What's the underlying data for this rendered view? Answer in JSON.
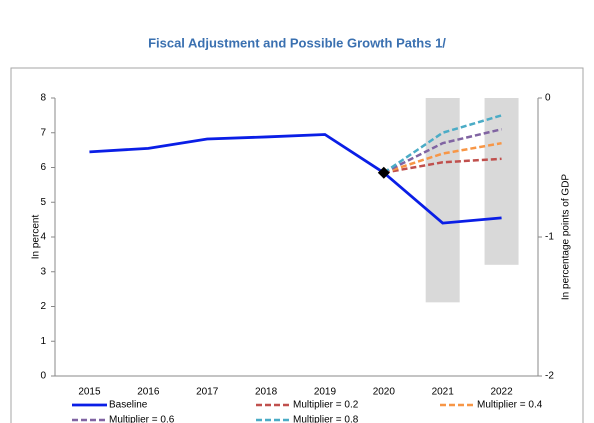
{
  "chart_data": {
    "type": "line",
    "title": "Fiscal Adjustment and Possible Growth Paths 1/",
    "ylabel": "In percent",
    "y2label": "In percentage points of GDP",
    "categories": [
      "2015",
      "2016",
      "2017",
      "2018",
      "2019",
      "2020",
      "2021",
      "2022"
    ],
    "series": [
      {
        "name": "Baseline",
        "color": "#0a1ee6",
        "dash": false,
        "values": [
          6.45,
          6.55,
          6.82,
          6.88,
          6.95,
          5.85,
          4.4,
          4.55
        ]
      },
      {
        "name": "Multiplier = 0.2",
        "color": "#c0504d",
        "dash": true,
        "values": [
          null,
          null,
          null,
          null,
          null,
          5.85,
          6.15,
          6.25
        ]
      },
      {
        "name": "Multiplier = 0.4",
        "color": "#f79646",
        "dash": true,
        "values": [
          null,
          null,
          null,
          null,
          null,
          5.85,
          6.4,
          6.7
        ]
      },
      {
        "name": "Multiplier = 0.6",
        "color": "#8064a2",
        "dash": true,
        "values": [
          null,
          null,
          null,
          null,
          null,
          5.85,
          6.7,
          7.1
        ]
      },
      {
        "name": "Multiplier = 0.8",
        "color": "#4bacc6",
        "dash": true,
        "values": [
          null,
          null,
          null,
          null,
          null,
          5.85,
          7.0,
          7.5
        ]
      }
    ],
    "bar_series": {
      "color": "#d9d9d9",
      "axis": "y2",
      "values": [
        null,
        null,
        null,
        null,
        null,
        null,
        -1.47,
        -1.2
      ]
    },
    "ylim": [
      0,
      8
    ],
    "yticks": [
      0,
      1,
      2,
      3,
      4,
      5,
      6,
      7,
      8
    ],
    "y2lim": [
      -2,
      0
    ],
    "y2ticks": [
      0,
      -1,
      -2
    ],
    "legend": "bottom"
  }
}
